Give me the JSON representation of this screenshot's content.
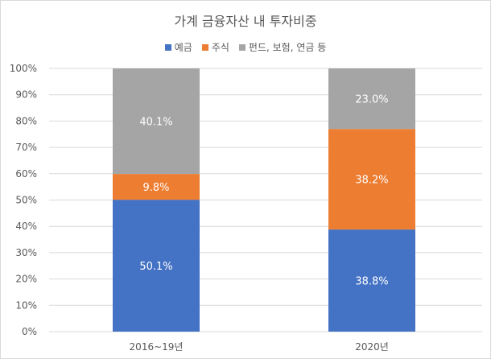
{
  "chart_data": {
    "type": "bar",
    "stacked": true,
    "percent": true,
    "title": "가계 금융자산 내 투자비중",
    "categories": [
      "2016~19년",
      "2020년"
    ],
    "series": [
      {
        "name": "예금",
        "values": [
          50.1,
          38.8
        ],
        "color": "#4472c4"
      },
      {
        "name": "주식",
        "values": [
          9.8,
          38.2
        ],
        "color": "#ed7d31"
      },
      {
        "name": "펀드, 보험, 연금 등",
        "values": [
          40.1,
          23.0
        ],
        "color": "#a5a5a5"
      }
    ],
    "data_labels": [
      [
        "50.1%",
        "38.8%"
      ],
      [
        "9.8%",
        "38.2%"
      ],
      [
        "40.1%",
        "23.0%"
      ]
    ],
    "y_ticks": [
      "0%",
      "10%",
      "20%",
      "30%",
      "40%",
      "50%",
      "60%",
      "70%",
      "80%",
      "90%",
      "100%"
    ],
    "ylim": [
      0,
      100
    ],
    "grid": true,
    "legend_position": "top"
  }
}
